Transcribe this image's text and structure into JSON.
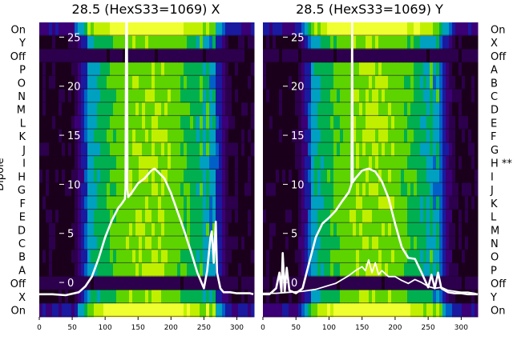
{
  "chart_data": [
    {
      "type": "heatmap",
      "title": "28.5 (HexS33=1069) X",
      "ylabel": "Dipole",
      "row_labels": [
        "On",
        "Y",
        "Off",
        "P",
        "O",
        "N",
        "M",
        "L",
        "K",
        "J",
        "I",
        "H",
        "G",
        "F",
        "E",
        "D",
        "C",
        "B",
        "A",
        "Off",
        "X",
        "On"
      ],
      "row_label_note": "",
      "x_ticks": [
        0,
        50,
        100,
        150,
        200,
        250,
        300
      ],
      "xlim": [
        0,
        325
      ],
      "overlay_ticks": [
        0,
        5,
        10,
        15,
        20,
        25
      ],
      "overlay_ylim": [
        -3.5,
        26.5
      ],
      "colormap": [
        "#1a001a",
        "#2d004d",
        "#3b0076",
        "#1a1aa0",
        "#0060c8",
        "#00a0c0",
        "#00b050",
        "#5dd400",
        "#c0f000",
        "#f0ff30"
      ],
      "series": [
        {
          "name": "",
          "x": [
            0,
            20,
            40,
            60,
            70,
            80,
            90,
            100,
            110,
            120,
            125,
            130,
            131,
            132,
            133,
            134,
            135,
            140,
            150,
            160,
            170,
            175,
            180,
            190,
            200,
            210,
            220,
            230,
            240,
            250,
            255,
            260,
            262,
            265,
            268,
            270,
            275,
            280,
            290,
            300,
            310,
            320,
            325
          ],
          "y": [
            -1.2,
            -1.2,
            -1.3,
            -1.0,
            -0.4,
            0.6,
            2.4,
            4.6,
            6.3,
            7.6,
            8.0,
            8.5,
            9.6,
            26.5,
            26.5,
            9.5,
            8.7,
            9.1,
            10.1,
            10.6,
            11.4,
            11.6,
            11.3,
            10.6,
            9.1,
            7.2,
            5.3,
            3.2,
            1.0,
            -0.6,
            1.2,
            4.6,
            5.2,
            2.0,
            6.2,
            1.0,
            -0.6,
            -1.0,
            -1.0,
            -1.1,
            -1.1,
            -1.1,
            -1.2
          ]
        }
      ]
    },
    {
      "type": "heatmap",
      "title": "28.5 (HexS33=1069) Y",
      "ylabel": "",
      "row_labels": [
        "On",
        "X",
        "Off",
        "A",
        "B",
        "C",
        "D",
        "E",
        "F",
        "G",
        "H",
        "I",
        "J",
        "K",
        "L",
        "M",
        "N",
        "O",
        "P",
        "Off",
        "Y",
        "On"
      ],
      "row_label_note": "**",
      "x_ticks": [
        0,
        50,
        100,
        150,
        200,
        250,
        300
      ],
      "xlim": [
        0,
        325
      ],
      "overlay_ticks": [
        0,
        5,
        10,
        15,
        20,
        25
      ],
      "overlay_ylim": [
        -3.5,
        26.5
      ],
      "colormap": [
        "#1a001a",
        "#2d004d",
        "#3b0076",
        "#1a1aa0",
        "#0060c8",
        "#00a0c0",
        "#00b050",
        "#5dd400",
        "#c0f000",
        "#f0ff30"
      ],
      "series": [
        {
          "name": "",
          "x": [
            0,
            10,
            20,
            25,
            28,
            30,
            33,
            36,
            40,
            50,
            60,
            70,
            80,
            90,
            100,
            110,
            120,
            130,
            134,
            135,
            136,
            140,
            150,
            160,
            170,
            180,
            190,
            200,
            210,
            220,
            230,
            240,
            250,
            255,
            260,
            265,
            270,
            275,
            280,
            290,
            300,
            310,
            320,
            325
          ],
          "y": [
            -1.2,
            -1.2,
            -0.6,
            1.0,
            -1.0,
            3.0,
            -1.0,
            1.5,
            -0.8,
            -1.1,
            -0.6,
            2.0,
            4.6,
            6.0,
            6.6,
            7.3,
            8.3,
            9.2,
            10.0,
            26.5,
            10.2,
            10.6,
            11.4,
            11.6,
            11.3,
            10.3,
            8.6,
            6.0,
            3.6,
            2.5,
            2.4,
            1.0,
            -0.5,
            0.8,
            -0.6,
            1.0,
            -0.6,
            -0.8,
            -1.0,
            -1.1,
            -1.1,
            -1.2,
            -1.2,
            -1.2
          ]
        },
        {
          "name": "",
          "x": [
            0,
            20,
            40,
            60,
            80,
            100,
            110,
            120,
            130,
            140,
            150,
            155,
            160,
            165,
            170,
            175,
            180,
            190,
            200,
            210,
            220,
            230,
            240,
            250,
            260,
            270,
            280,
            290,
            300,
            310,
            320,
            325
          ],
          "y": [
            -1.1,
            -1.1,
            -1.0,
            -0.9,
            -0.7,
            -0.3,
            -0.1,
            0.3,
            0.7,
            1.2,
            1.6,
            1.2,
            2.3,
            1.0,
            2.0,
            0.8,
            1.2,
            0.6,
            0.6,
            0.2,
            -0.1,
            0.3,
            0.0,
            -0.4,
            -0.6,
            -0.5,
            -0.8,
            -0.9,
            -1.0,
            -1.0,
            -1.1,
            -1.2
          ]
        }
      ]
    }
  ]
}
